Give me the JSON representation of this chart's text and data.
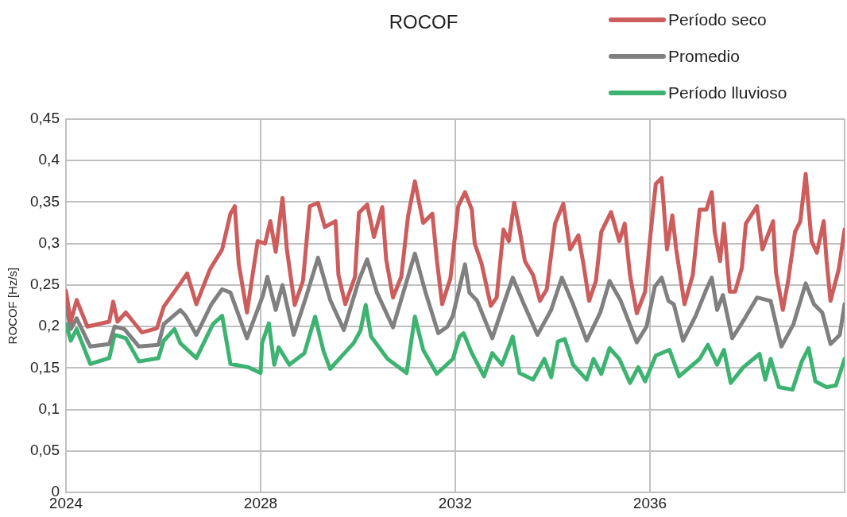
{
  "chart_data": {
    "type": "line",
    "title": "ROCOF",
    "ylabel": "ROCOF [Hz/s]",
    "legend": "top right",
    "grid": true,
    "xlim": [
      2024,
      2040
    ],
    "xticks": [
      2024,
      2028,
      2032,
      2036,
      {
        "value": 2040,
        "label": null
      }
    ],
    "ylim": [
      0,
      0.45
    ],
    "yticks": [
      {
        "value": 0,
        "label": "0"
      },
      {
        "value": 0.05,
        "label": "0,05"
      },
      {
        "value": 0.1,
        "label": "0,1"
      },
      {
        "value": 0.15,
        "label": "0,15"
      },
      {
        "value": 0.2,
        "label": "0,2"
      },
      {
        "value": 0.25,
        "label": "0,25"
      },
      {
        "value": 0.3,
        "label": "0,3"
      },
      {
        "value": 0.35,
        "label": "0,35"
      },
      {
        "value": 0.4,
        "label": "0,4"
      },
      {
        "value": 0.45,
        "label": "0,45"
      }
    ],
    "series": [
      {
        "name": "Período seco",
        "color": "#cd5c5c",
        "x": [
          2024,
          2024.1,
          2024.22,
          2024.44,
          2024.89,
          2024.97,
          2025.06,
          2025.23,
          2025.56,
          2025.87,
          2026.01,
          2026.35,
          2026.49,
          2026.68,
          2026.96,
          2027.21,
          2027.38,
          2027.47,
          2027.55,
          2027.72,
          2027.94,
          2028.09,
          2028.2,
          2028.31,
          2028.45,
          2028.54,
          2028.7,
          2028.87,
          2029.01,
          2029.18,
          2029.32,
          2029.54,
          2029.6,
          2029.74,
          2029.94,
          2030.02,
          2030.19,
          2030.33,
          2030.5,
          2030.58,
          2030.72,
          2030.89,
          2031.03,
          2031.17,
          2031.34,
          2031.53,
          2031.62,
          2031.73,
          2031.9,
          2032.06,
          2032.2,
          2032.34,
          2032.4,
          2032.54,
          2032.73,
          2032.85,
          2032.99,
          2033.1,
          2033.21,
          2033.32,
          2033.43,
          2033.6,
          2033.74,
          2033.88,
          2034.05,
          2034.22,
          2034.36,
          2034.53,
          2034.64,
          2034.75,
          2034.89,
          2035,
          2035.2,
          2035.37,
          2035.48,
          2035.59,
          2035.73,
          2035.9,
          2036.01,
          2036.12,
          2036.24,
          2036.35,
          2036.46,
          2036.54,
          2036.71,
          2036.88,
          2037.02,
          2037.16,
          2037.27,
          2037.33,
          2037.44,
          2037.52,
          2037.64,
          2037.75,
          2037.89,
          2037.97,
          2038.2,
          2038.31,
          2038.53,
          2038.59,
          2038.73,
          2038.84,
          2038.98,
          2039.09,
          2039.2,
          2039.32,
          2039.43,
          2039.57,
          2039.63,
          2039.71,
          2039.88,
          2040
        ],
        "values": [
          0.243,
          0.206,
          0.232,
          0.2,
          0.206,
          0.23,
          0.206,
          0.217,
          0.193,
          0.198,
          0.224,
          0.252,
          0.264,
          0.227,
          0.269,
          0.293,
          0.336,
          0.345,
          0.276,
          0.217,
          0.303,
          0.3,
          0.327,
          0.29,
          0.355,
          0.293,
          0.226,
          0.255,
          0.345,
          0.349,
          0.32,
          0.327,
          0.262,
          0.227,
          0.26,
          0.337,
          0.347,
          0.308,
          0.344,
          0.281,
          0.235,
          0.26,
          0.333,
          0.375,
          0.325,
          0.336,
          0.281,
          0.227,
          0.258,
          0.345,
          0.362,
          0.341,
          0.3,
          0.276,
          0.225,
          0.235,
          0.317,
          0.303,
          0.349,
          0.317,
          0.279,
          0.262,
          0.231,
          0.245,
          0.324,
          0.348,
          0.293,
          0.31,
          0.273,
          0.231,
          0.255,
          0.314,
          0.338,
          0.303,
          0.324,
          0.262,
          0.216,
          0.242,
          0.31,
          0.372,
          0.379,
          0.293,
          0.334,
          0.293,
          0.227,
          0.262,
          0.341,
          0.341,
          0.362,
          0.314,
          0.279,
          0.324,
          0.242,
          0.242,
          0.271,
          0.324,
          0.345,
          0.293,
          0.327,
          0.265,
          0.22,
          0.255,
          0.314,
          0.327,
          0.384,
          0.303,
          0.289,
          0.327,
          0.279,
          0.231,
          0.269,
          0.317
        ]
      },
      {
        "name": "Promedio",
        "color": "#808080",
        "x": [
          2024,
          2024.1,
          2024.22,
          2024.5,
          2024.89,
          2025,
          2025.2,
          2025.5,
          2025.9,
          2026.01,
          2026.35,
          2026.46,
          2026.68,
          2026.99,
          2027.21,
          2027.38,
          2027.72,
          2028.05,
          2028.14,
          2028.31,
          2028.45,
          2028.68,
          2028.93,
          2029.18,
          2029.43,
          2029.71,
          2030.02,
          2030.19,
          2030.39,
          2030.72,
          2031.17,
          2031.39,
          2031.65,
          2031.84,
          2031.95,
          2032.2,
          2032.29,
          2032.45,
          2032.76,
          2033.04,
          2033.18,
          2033.41,
          2033.69,
          2033.97,
          2034.19,
          2034.42,
          2034.7,
          2034.98,
          2035.17,
          2035.4,
          2035.73,
          2035.93,
          2036.1,
          2036.24,
          2036.38,
          2036.49,
          2036.68,
          2036.94,
          2037.16,
          2037.27,
          2037.38,
          2037.5,
          2037.69,
          2037.92,
          2038.2,
          2038.48,
          2038.7,
          2038.95,
          2039.2,
          2039.37,
          2039.54,
          2039.71,
          2039.9,
          2040
        ],
        "values": [
          0.225,
          0.197,
          0.21,
          0.176,
          0.179,
          0.2,
          0.197,
          0.176,
          0.178,
          0.203,
          0.22,
          0.213,
          0.19,
          0.227,
          0.245,
          0.241,
          0.186,
          0.238,
          0.26,
          0.22,
          0.25,
          0.19,
          0.235,
          0.283,
          0.232,
          0.196,
          0.256,
          0.281,
          0.241,
          0.199,
          0.288,
          0.241,
          0.192,
          0.2,
          0.213,
          0.275,
          0.241,
          0.231,
          0.186,
          0.235,
          0.259,
          0.227,
          0.19,
          0.22,
          0.259,
          0.227,
          0.183,
          0.217,
          0.255,
          0.231,
          0.181,
          0.2,
          0.248,
          0.259,
          0.231,
          0.227,
          0.183,
          0.213,
          0.245,
          0.259,
          0.22,
          0.238,
          0.186,
          0.207,
          0.235,
          0.231,
          0.176,
          0.203,
          0.252,
          0.227,
          0.217,
          0.179,
          0.19,
          0.227
        ]
      },
      {
        "name": "Período lluvioso",
        "color": "#3cb371",
        "x": [
          2024,
          2024.1,
          2024.22,
          2024.5,
          2024.89,
          2025,
          2025.23,
          2025.5,
          2025.9,
          2026.01,
          2026.23,
          2026.35,
          2026.68,
          2027.02,
          2027.21,
          2027.38,
          2027.75,
          2028,
          2028.03,
          2028.17,
          2028.28,
          2028.37,
          2028.59,
          2028.9,
          2029.12,
          2029.29,
          2029.43,
          2029.66,
          2029.91,
          2030.05,
          2030.16,
          2030.27,
          2030.61,
          2031,
          2031.17,
          2031.34,
          2031.62,
          2031.95,
          2032.09,
          2032.17,
          2032.34,
          2032.59,
          2032.76,
          2032.96,
          2033.18,
          2033.32,
          2033.6,
          2033.83,
          2033.97,
          2034.11,
          2034.25,
          2034.42,
          2034.7,
          2034.84,
          2035,
          2035.17,
          2035.37,
          2035.59,
          2035.76,
          2035.9,
          2036.12,
          2036.4,
          2036.6,
          2037.02,
          2037.19,
          2037.38,
          2037.52,
          2037.66,
          2037.92,
          2038.25,
          2038.37,
          2038.48,
          2038.65,
          2038.93,
          2039.12,
          2039.26,
          2039.4,
          2039.63,
          2039.82,
          2040
        ],
        "values": [
          0.203,
          0.183,
          0.197,
          0.155,
          0.162,
          0.19,
          0.186,
          0.158,
          0.162,
          0.183,
          0.197,
          0.18,
          0.162,
          0.203,
          0.213,
          0.155,
          0.151,
          0.144,
          0.18,
          0.204,
          0.154,
          0.175,
          0.154,
          0.168,
          0.212,
          0.171,
          0.149,
          0.164,
          0.18,
          0.195,
          0.226,
          0.188,
          0.161,
          0.144,
          0.212,
          0.172,
          0.143,
          0.161,
          0.188,
          0.192,
          0.168,
          0.14,
          0.168,
          0.154,
          0.188,
          0.144,
          0.136,
          0.161,
          0.139,
          0.182,
          0.185,
          0.154,
          0.136,
          0.161,
          0.143,
          0.174,
          0.161,
          0.132,
          0.151,
          0.134,
          0.165,
          0.172,
          0.14,
          0.161,
          0.178,
          0.154,
          0.172,
          0.132,
          0.151,
          0.167,
          0.136,
          0.161,
          0.127,
          0.124,
          0.158,
          0.174,
          0.134,
          0.127,
          0.129,
          0.161
        ]
      }
    ]
  }
}
